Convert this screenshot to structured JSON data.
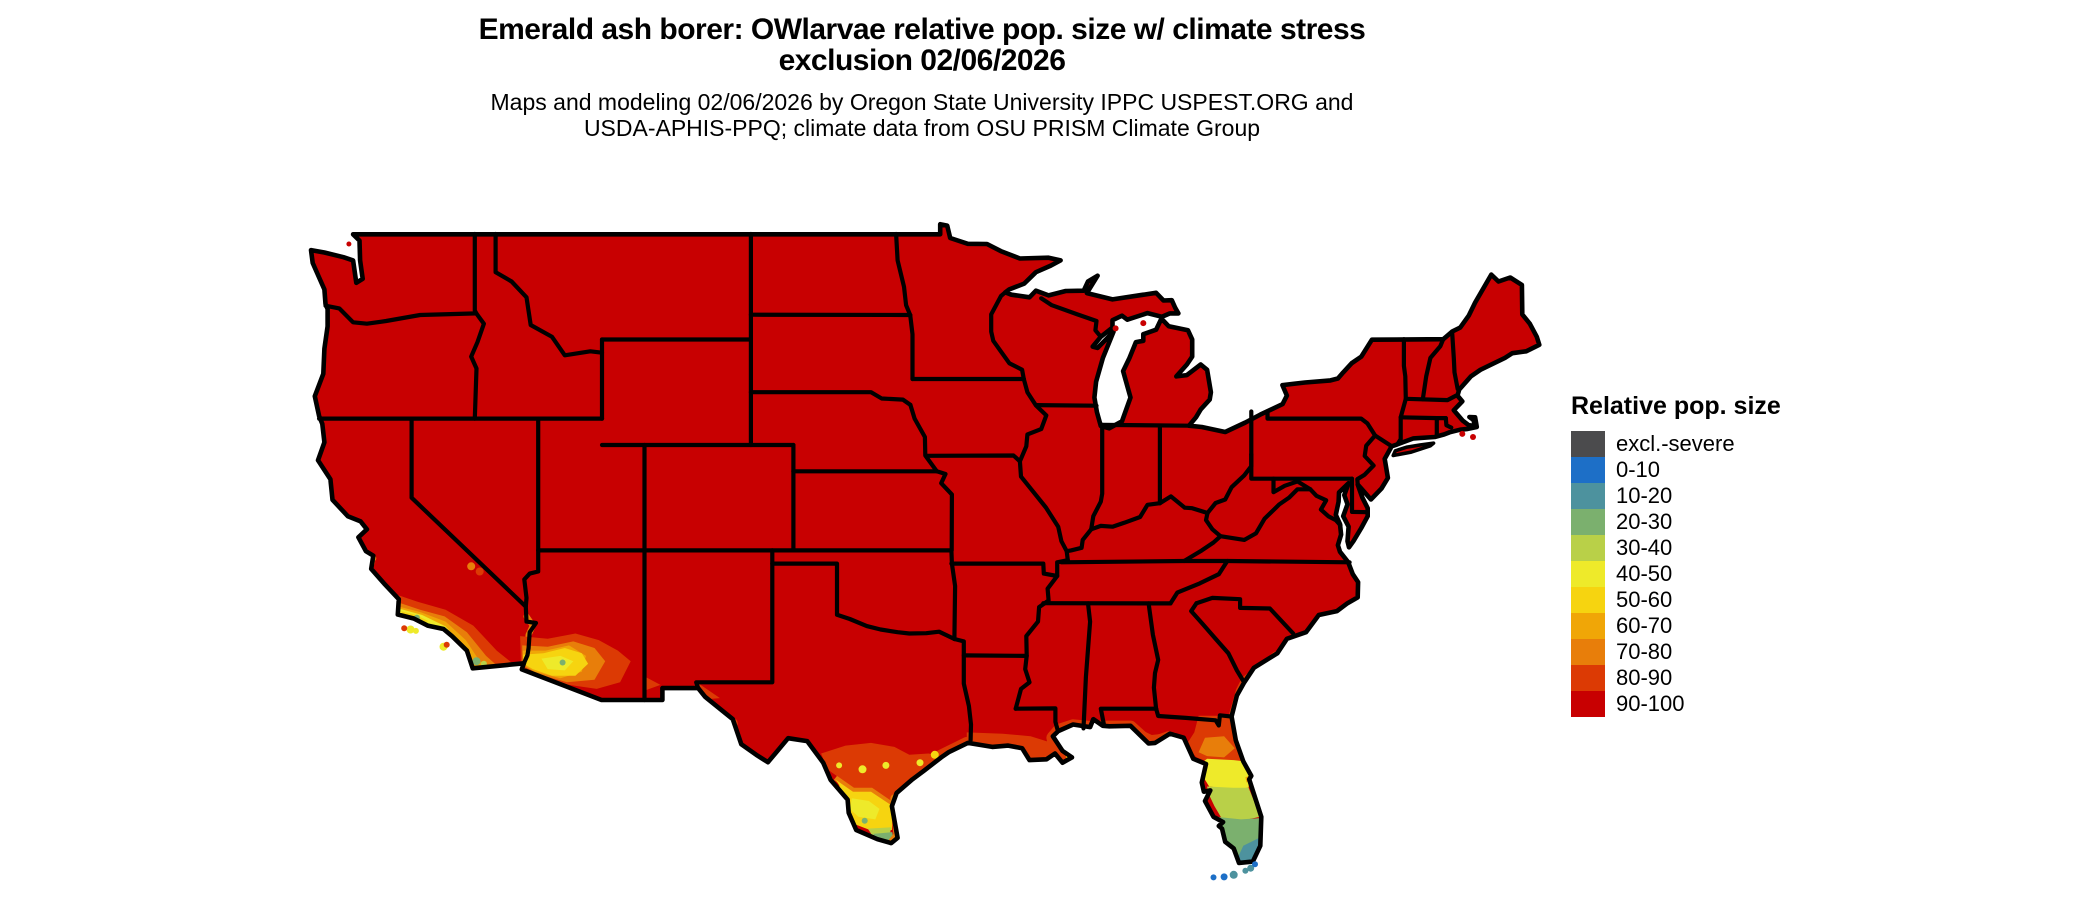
{
  "header": {
    "title_line1": "Emerald ash borer: OWlarvae relative pop. size w/ climate stress",
    "title_line2": "exclusion 02/06/2026",
    "subtitle_line1": "Maps and modeling 02/06/2026 by Oregon State University IPPC USPEST.ORG and",
    "subtitle_line2": "USDA-APHIS-PPQ; climate data from OSU PRISM Climate Group"
  },
  "legend": {
    "title": "Relative pop. size",
    "entries": [
      {
        "label": "excl.-severe",
        "color": "#4b4b4d"
      },
      {
        "label": "0-10",
        "color": "#1d6fc7"
      },
      {
        "label": "10-20",
        "color": "#4d929e"
      },
      {
        "label": "20-30",
        "color": "#7bb06e"
      },
      {
        "label": "30-40",
        "color": "#b9d048"
      },
      {
        "label": "40-50",
        "color": "#eeea2a"
      },
      {
        "label": "50-60",
        "color": "#f6d410"
      },
      {
        "label": "60-70",
        "color": "#f0a607"
      },
      {
        "label": "70-80",
        "color": "#e87e0a"
      },
      {
        "label": "80-90",
        "color": "#dc3a04"
      },
      {
        "label": "90-100",
        "color": "#c80001"
      }
    ]
  },
  "map": {
    "base_bucket": "90-100",
    "border_color": "#000000",
    "water_color": "#ffffff"
  }
}
